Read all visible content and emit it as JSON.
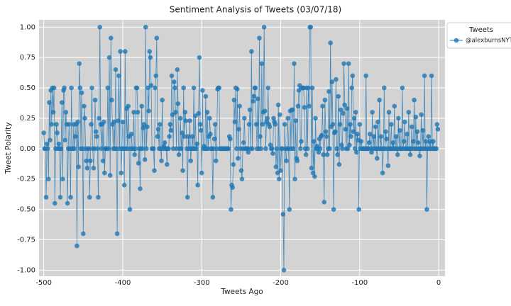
{
  "chart_data": {
    "type": "line",
    "title": "Sentiment Analysis of Tweets (03/07/18)",
    "x_label": "Tweets Ago",
    "y_label": "Tweet Polarity",
    "legend_title": "Tweets",
    "legend_position": "outside-upper-right",
    "grid": true,
    "background": "#d3d3d3",
    "xlim": [
      -506,
      8
    ],
    "ylim": [
      -1.05,
      1.06
    ],
    "xticks": [
      -500,
      -400,
      -300,
      -200,
      -100,
      0
    ],
    "yticks": [
      {
        "value": -1,
        "label": "-1.00"
      },
      {
        "value": -0.75,
        "label": "-0.75"
      },
      {
        "value": -0.5,
        "label": "-0.50"
      },
      {
        "value": -0.25,
        "label": "-0.25"
      },
      {
        "value": 0,
        "label": "0.00"
      },
      {
        "value": 0.25,
        "label": "0.25"
      },
      {
        "value": 0.5,
        "label": "0.50"
      },
      {
        "value": 0.75,
        "label": "0.75"
      },
      {
        "value": 1,
        "label": "1.00"
      }
    ],
    "x": [
      -500,
      -499,
      -498,
      -497,
      -496,
      -495,
      -494,
      -493,
      -492,
      -491,
      -490,
      -489,
      -488,
      -487,
      -486,
      -485,
      -484,
      -483,
      -482,
      -481,
      -480,
      -479,
      -478,
      -477,
      -476,
      -475,
      -474,
      -473,
      -472,
      -471,
      -470,
      -469,
      -468,
      -467,
      -466,
      -465,
      -464,
      -463,
      -462,
      -461,
      -460,
      -459,
      -458,
      -457,
      -456,
      -455,
      -454,
      -453,
      -452,
      -451,
      -450,
      -449,
      -448,
      -447,
      -446,
      -445,
      -444,
      -443,
      -442,
      -441,
      -440,
      -439,
      -438,
      -437,
      -436,
      -435,
      -434,
      -433,
      -432,
      -431,
      -430,
      -429,
      -428,
      -427,
      -426,
      -425,
      -424,
      -423,
      -422,
      -421,
      -420,
      -419,
      -418,
      -417,
      -416,
      -415,
      -414,
      -413,
      -412,
      -411,
      -410,
      -409,
      -408,
      -407,
      -406,
      -405,
      -404,
      -403,
      -402,
      -401,
      -400,
      -399,
      -398,
      -397,
      -396,
      -395,
      -394,
      -393,
      -392,
      -391,
      -390,
      -389,
      -388,
      -387,
      -386,
      -385,
      -384,
      -383,
      -382,
      -381,
      -380,
      -379,
      -378,
      -377,
      -376,
      -375,
      -374,
      -373,
      -372,
      -371,
      -370,
      -369,
      -368,
      -367,
      -366,
      -365,
      -364,
      -363,
      -362,
      -361,
      -360,
      -359,
      -358,
      -357,
      -356,
      -355,
      -354,
      -353,
      -352,
      -351,
      -350,
      -349,
      -348,
      -347,
      -346,
      -345,
      -344,
      -343,
      -342,
      -341,
      -340,
      -339,
      -338,
      -337,
      -336,
      -335,
      -334,
      -333,
      -332,
      -331,
      -330,
      -329,
      -328,
      -327,
      -326,
      -325,
      -324,
      -323,
      -322,
      -321,
      -320,
      -319,
      -318,
      -317,
      -316,
      -315,
      -314,
      -313,
      -312,
      -311,
      -310,
      -309,
      -308,
      -307,
      -306,
      -305,
      -304,
      -303,
      -302,
      -301,
      -300,
      -299,
      -298,
      -297,
      -296,
      -295,
      -294,
      -293,
      -292,
      -291,
      -290,
      -289,
      -288,
      -287,
      -286,
      -285,
      -284,
      -283,
      -282,
      -281,
      -280,
      -279,
      -278,
      -277,
      -276,
      -275,
      -274,
      -273,
      -272,
      -271,
      -270,
      -269,
      -268,
      -267,
      -266,
      -265,
      -264,
      -263,
      -262,
      -261,
      -260,
      -259,
      -258,
      -257,
      -256,
      -255,
      -254,
      -253,
      -252,
      -251,
      -250,
      -249,
      -248,
      -247,
      -246,
      -245,
      -244,
      -243,
      -242,
      -241,
      -240,
      -239,
      -238,
      -237,
      -236,
      -235,
      -234,
      -233,
      -232,
      -231,
      -230,
      -229,
      -228,
      -227,
      -226,
      -225,
      -224,
      -223,
      -222,
      -221,
      -220,
      -219,
      -218,
      -217,
      -216,
      -215,
      -214,
      -213,
      -212,
      -211,
      -210,
      -209,
      -208,
      -207,
      -206,
      -205,
      -204,
      -203,
      -202,
      -201,
      -200,
      -199,
      -198,
      -197,
      -196,
      -195,
      -194,
      -193,
      -192,
      -191,
      -190,
      -189,
      -188,
      -187,
      -186,
      -185,
      -184,
      -183,
      -182,
      -181,
      -180,
      -179,
      -178,
      -177,
      -176,
      -175,
      -174,
      -173,
      -172,
      -171,
      -170,
      -169,
      -168,
      -167,
      -166,
      -165,
      -164,
      -163,
      -162,
      -161,
      -160,
      -159,
      -158,
      -157,
      -156,
      -155,
      -154,
      -153,
      -152,
      -151,
      -150,
      -149,
      -148,
      -147,
      -146,
      -145,
      -144,
      -143,
      -142,
      -141,
      -140,
      -139,
      -138,
      -137,
      -136,
      -135,
      -134,
      -133,
      -132,
      -131,
      -130,
      -129,
      -128,
      -127,
      -126,
      -125,
      -124,
      -123,
      -122,
      -121,
      -120,
      -119,
      -118,
      -117,
      -116,
      -115,
      -114,
      -113,
      -112,
      -111,
      -110,
      -109,
      -108,
      -107,
      -106,
      -105,
      -104,
      -103,
      -102,
      -101,
      -100,
      -99,
      -98,
      -97,
      -96,
      -95,
      -94,
      -93,
      -92,
      -91,
      -90,
      -89,
      -88,
      -87,
      -86,
      -85,
      -84,
      -83,
      -82,
      -81,
      -80,
      -79,
      -78,
      -77,
      -76,
      -75,
      -74,
      -73,
      -72,
      -71,
      -70,
      -69,
      -68,
      -67,
      -66,
      -65,
      -64,
      -63,
      -62,
      -61,
      -60,
      -59,
      -58,
      -57,
      -56,
      -55,
      -54,
      -53,
      -52,
      -51,
      -50,
      -49,
      -48,
      -47,
      -46,
      -45,
      -44,
      -43,
      -42,
      -41,
      -40,
      -39,
      -38,
      -37,
      -36,
      -35,
      -34,
      -33,
      -32,
      -31,
      -30,
      -29,
      -28,
      -27,
      -26,
      -25,
      -24,
      -23,
      -22,
      -21,
      -20,
      -19,
      -18,
      -17,
      -16,
      -15,
      -14,
      -13,
      -12,
      -11,
      -10,
      -9,
      -8,
      -7,
      -6,
      -5,
      -4,
      -3,
      -2,
      -1
    ],
    "series": [
      {
        "name": "@alexburnsNYT",
        "color": "#1f77b4",
        "values": [
          0.13,
          0,
          0,
          -0.4,
          0.04,
          0,
          -0.25,
          0.38,
          0.07,
          0.48,
          0.2,
          0.5,
          0.3,
          0.5,
          -0.45,
          0,
          0.2,
          0.13,
          0,
          0.04,
          0,
          -0.4,
          0,
          0.38,
          -0.25,
          0.48,
          0.5,
          0.07,
          0.3,
          0.2,
          -0.45,
          0,
          0.2,
          0,
          -0.4,
          0.5,
          0,
          0,
          0.2,
          0,
          0.1,
          0.2,
          -0.8,
          0.22,
          -0.15,
          0.7,
          0.5,
          0,
          0.46,
          0,
          -0.7,
          0.35,
          0.25,
          0,
          -0.1,
          -0.16,
          0,
          0,
          -0.4,
          -0.1,
          0.2,
          0.5,
          0,
          -0.16,
          0,
          0.4,
          0.14,
          0.1,
          0,
          -0.4,
          0.25,
          1.0,
          0.2,
          0,
          0.2,
          -0.1,
          0.22,
          -0.2,
          0,
          0,
          0,
          0.5,
          0,
          0.75,
          -0.22,
          0.91,
          0.4,
          0.2,
          0,
          0.22,
          0,
          0.65,
          0,
          -0.7,
          0.23,
          0.6,
          0,
          0.8,
          -0.2,
          0,
          0.22,
          0,
          -0.3,
          0.8,
          0,
          0.33,
          0,
          0.35,
          0.1,
          -0.5,
          0,
          0.12,
          0,
          0,
          0.3,
          -0.05,
          0,
          0.5,
          0.5,
          0.3,
          -0.12,
          0,
          -0.33,
          0,
          0.35,
          0,
          0.17,
          0.2,
          -0.09,
          1.0,
          0,
          0.18,
          0.5,
          0.31,
          0.8,
          0.75,
          0.52,
          0,
          0,
          0,
          -0.18,
          0.5,
          0.6,
          0.91,
          0.1,
          0.16,
          0,
          0.2,
          0,
          -0.1,
          0.4,
          0,
          0.02,
          0.05,
          0,
          0,
          -0.13,
          0,
          0,
          0.1,
          0.2,
          0.15,
          0.6,
          0.28,
          0,
          0.55,
          0.5,
          0.3,
          0,
          0.65,
          0.37,
          -0.05,
          0,
          0.25,
          0,
          0.13,
          -0.18,
          0.5,
          0.1,
          0.3,
          0.23,
          0,
          -0.4,
          0.1,
          0,
          0.23,
          -0.1,
          0,
          0.1,
          0,
          0.5,
          0,
          0.27,
          0,
          0.04,
          -0.3,
          0.29,
          0.75,
          0.2,
          0.15,
          -0.2,
          0.48,
          0,
          0.02,
          0,
          0.43,
          0,
          0.3,
          0,
          0.1,
          0.25,
          0.12,
          0,
          0,
          -0.4,
          0,
          0.08,
          0.2,
          -0.1,
          0,
          0.49,
          0.5,
          0.5,
          0,
          0,
          0,
          0,
          0,
          0,
          0,
          0,
          0,
          0,
          0,
          0,
          0.1,
          0.08,
          -0.5,
          -0.3,
          -0.32,
          -0.13,
          0.4,
          0.22,
          0.5,
          0,
          0.49,
          -0.08,
          0.16,
          0.35,
          0,
          -0.18,
          -0.25,
          0,
          0.05,
          0.25,
          0,
          0,
          0,
          0,
          -0.03,
          0.2,
          0.32,
          0,
          0.8,
          0,
          0.39,
          0.43,
          0.5,
          0.5,
          0.2,
          0,
          0.41,
          0,
          0.91,
          0.1,
          0,
          0.7,
          0.2,
          0.3,
          1.0,
          0.31,
          0,
          0.22,
          0.25,
          0.5,
          0.2,
          0.18,
          0.03,
          0,
          0,
          -0.04,
          0.25,
          0.22,
          0.2,
          -0.15,
          0,
          -0.2,
          0.36,
          -0.25,
          0.28,
          -0.18,
          0,
          0,
          -0.54,
          -1.0,
          0.2,
          0,
          -0.1,
          0,
          0.25,
          0,
          -0.5,
          0.31,
          0,
          0.32,
          0.32,
          0,
          0.7,
          -0.25,
          0.23,
          -0.08,
          -0.1,
          0.35,
          0.48,
          0.52,
          0,
          0.06,
          0.5,
          0.5,
          0.5,
          0.34,
          0,
          -0.05,
          0.5,
          0,
          0.5,
          0.35,
          1.0,
          1.0,
          -0.16,
          0.5,
          -0.2,
          0.06,
          -0.23,
          0.25,
          0,
          0.02,
          0,
          -0.03,
          0.08,
          0,
          0.1,
          0.11,
          0.35,
          -0.05,
          -0.44,
          0.4,
          0.14,
          0.1,
          -0.05,
          0,
          0.47,
          0,
          0.87,
          0.18,
          0.55,
          0.2,
          -0.5,
          0.13,
          0.14,
          0.57,
          0,
          -0.05,
          0.43,
          -0.13,
          0.2,
          0.32,
          0.03,
          0,
          0.29,
          0.7,
          0.36,
          0.16,
          0,
          0.33,
          0,
          0.7,
          0.03,
          0.2,
          0.1,
          0.5,
          0.6,
          0.14,
          0.25,
          0,
          0.3,
          -0.03,
          0.12,
          0.07,
          -0.5,
          0.2,
          0,
          0.06,
          0,
          0,
          0,
          0,
          0,
          0.6,
          0,
          0,
          0,
          0.05,
          0.12,
          0,
          -0.03,
          0.3,
          0,
          0.1,
          0,
          0.18,
          0,
          -0.08,
          0.22,
          0,
          0.4,
          0,
          0.1,
          0,
          -0.2,
          0,
          0.5,
          0,
          0.14,
          0.08,
          0,
          -0.14,
          0.3,
          0,
          0,
          0.2,
          0,
          0.05,
          0,
          0.35,
          0,
          0.1,
          0,
          -0.05,
          0.25,
          0,
          0.15,
          0,
          0,
          0.5,
          0,
          0.06,
          0.22,
          0,
          0,
          0.12,
          0,
          0.3,
          0,
          -0.05,
          0,
          0.18,
          0,
          0.06,
          0.4,
          0,
          0.26,
          0,
          0.14,
          0.05,
          0,
          -0.06,
          0,
          0.28,
          0,
          0.15,
          0,
          0.6,
          0,
          0.06,
          -0.5,
          0,
          0.1,
          0,
          0.06,
          0,
          0.6,
          0,
          0.06,
          0,
          0,
          0,
          0,
          0.2,
          0.16
        ]
      }
    ]
  }
}
